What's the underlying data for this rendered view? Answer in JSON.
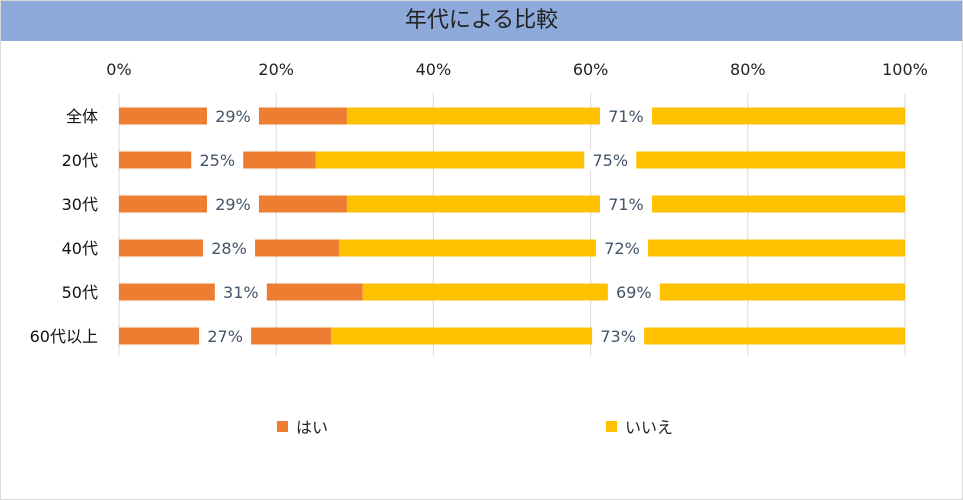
{
  "chart_data": {
    "type": "bar",
    "orientation": "horizontal",
    "stacked": "percent",
    "title": "年代による比較",
    "categories": [
      "全体",
      "20代",
      "30代",
      "40代",
      "50代",
      "60代以上"
    ],
    "series": [
      {
        "name": "はい",
        "values": [
          29,
          25,
          29,
          28,
          31,
          27
        ],
        "labels": [
          "29%",
          "25%",
          "29%",
          "28%",
          "31%",
          "27%"
        ],
        "color": "#ed7d31"
      },
      {
        "name": "いいえ",
        "values": [
          71,
          75,
          71,
          72,
          69,
          73
        ],
        "labels": [
          "71%",
          "75%",
          "71%",
          "72%",
          "69%",
          "73%"
        ],
        "color": "#ffc000"
      }
    ],
    "xlim": [
      0,
      100
    ],
    "x_ticks": [
      "0%",
      "20%",
      "40%",
      "60%",
      "80%",
      "100%"
    ],
    "x_axis_position": "top",
    "grid": true,
    "legend": "bottom",
    "title_band_color": "#8eaadb"
  }
}
